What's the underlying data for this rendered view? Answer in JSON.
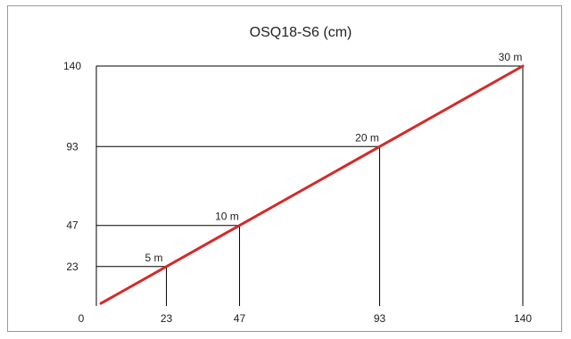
{
  "chart_data": {
    "type": "line",
    "title": "OSQ18-S6 (cm)",
    "xlabel": "",
    "ylabel": "",
    "xlim": [
      0,
      140
    ],
    "ylim": [
      0,
      140
    ],
    "x_ticks": [
      "0",
      "23",
      "47",
      "93",
      "140"
    ],
    "y_ticks": [
      "23",
      "47",
      "93",
      "140"
    ],
    "grid": false,
    "legend": "none",
    "line_color": "#d42a2a",
    "series": [
      {
        "values": [
          [
            1.5,
            1.5
          ],
          [
            140,
            140
          ]
        ]
      }
    ],
    "annotations": [
      {
        "label": "5 m",
        "x": 23,
        "y": 23
      },
      {
        "label": "10 m",
        "x": 47,
        "y": 47
      },
      {
        "label": "20 m",
        "x": 93,
        "y": 93
      },
      {
        "label": "30 m",
        "x": 140,
        "y": 140
      }
    ]
  }
}
